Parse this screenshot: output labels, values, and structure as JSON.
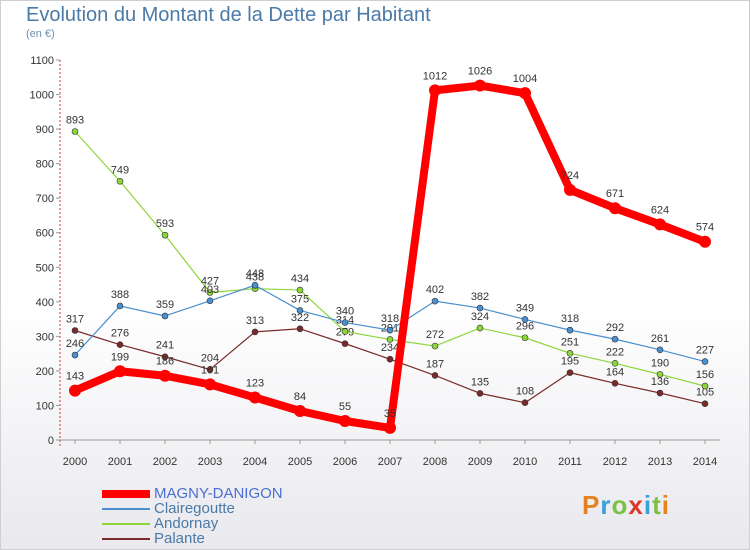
{
  "title": "Evolution du Montant de la Dette par Habitant",
  "subtitle": "(en €)",
  "brand": {
    "p": "P",
    "r": "r",
    "o": "o",
    "x": "x",
    "i": "i",
    "t": "t",
    "i2": "i"
  },
  "chart_data": {
    "type": "line",
    "x": [
      "2000",
      "2001",
      "2002",
      "2003",
      "2004",
      "2005",
      "2006",
      "2007",
      "2008",
      "2009",
      "2010",
      "2011",
      "2012",
      "2013",
      "2014"
    ],
    "ylim": [
      0,
      1100
    ],
    "yticks": [
      0,
      100,
      200,
      300,
      400,
      500,
      600,
      700,
      800,
      900,
      1000,
      1100
    ],
    "grid": false,
    "legend_position": "bottom-left",
    "series": [
      {
        "name": "Palante",
        "color": "#7a2a2a",
        "width": 1.2,
        "values": [
          317,
          276,
          241,
          204,
          313,
          322,
          279,
          234,
          187,
          135,
          108,
          195,
          164,
          136,
          105
        ]
      },
      {
        "name": "Andornay",
        "color": "#8cd63a",
        "width": 1.2,
        "values": [
          893,
          749,
          593,
          427,
          438,
          434,
          314,
          291,
          272,
          324,
          296,
          251,
          222,
          190,
          156
        ]
      },
      {
        "name": "Clairegoutte",
        "color": "#4a8fd0",
        "width": 1.2,
        "values": [
          246,
          388,
          359,
          403,
          448,
          375,
          340,
          318,
          402,
          382,
          349,
          318,
          292,
          261,
          227
        ]
      },
      {
        "name": "MAGNY-DANIGON",
        "color": "#ff0000",
        "width": 8,
        "values": [
          143,
          199,
          186,
          161,
          123,
          84,
          55,
          35,
          1012,
          1026,
          1004,
          724,
          671,
          624,
          574
        ]
      }
    ]
  }
}
